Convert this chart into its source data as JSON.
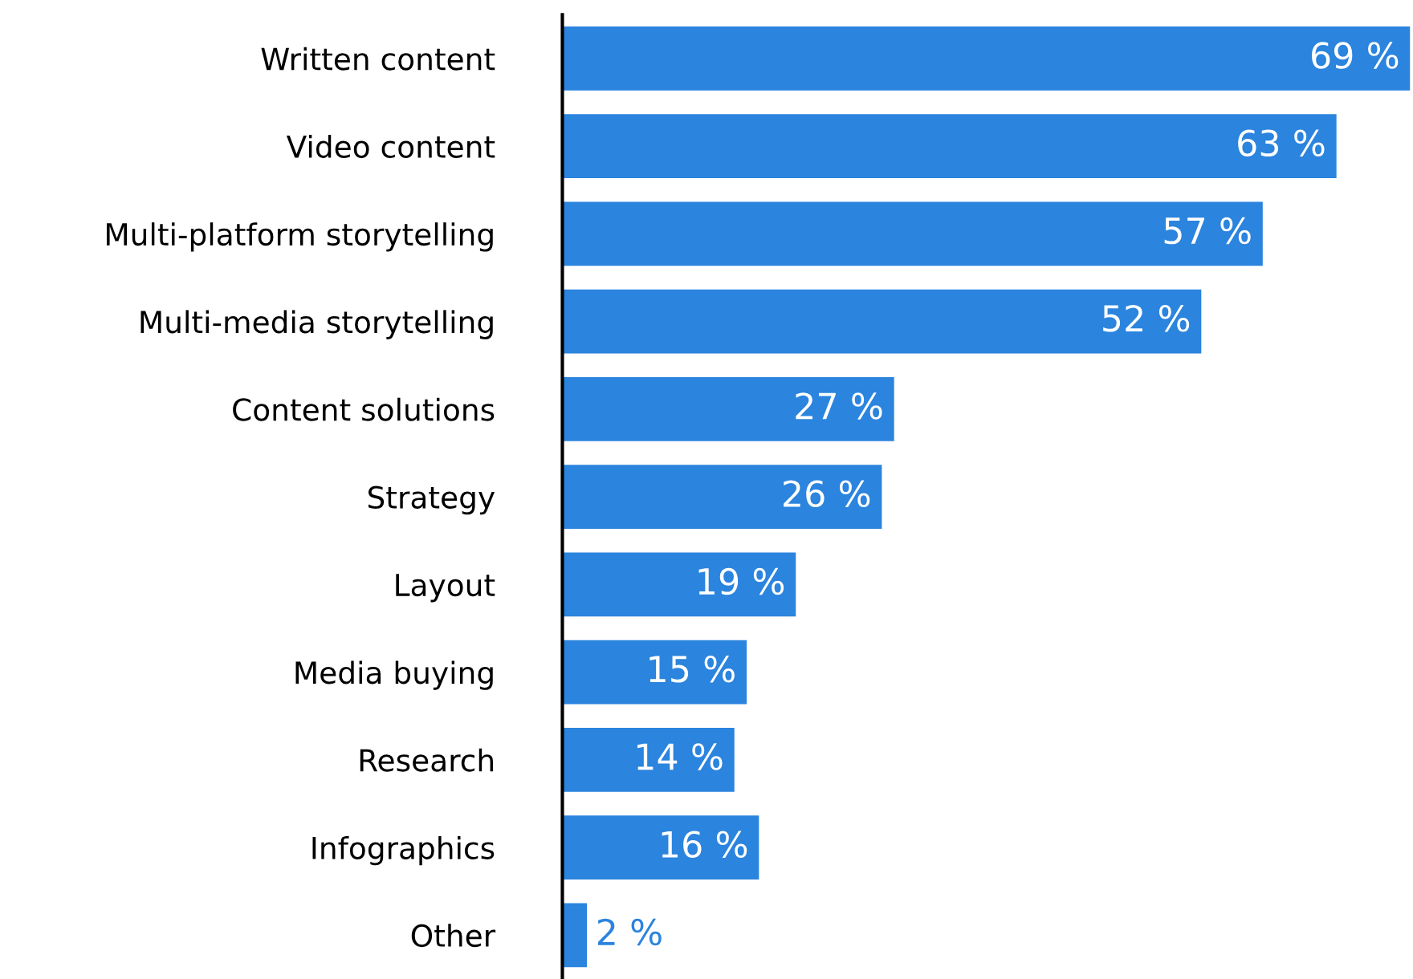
{
  "chart_data": {
    "type": "bar",
    "orientation": "horizontal",
    "categories": [
      "Written content",
      "Video content",
      "Multi-platform storytelling",
      "Multi-media storytelling",
      "Content solutions",
      "Strategy",
      "Layout",
      "Media buying",
      "Research",
      "Infographics",
      "Other"
    ],
    "values": [
      69,
      63,
      57,
      52,
      27,
      26,
      19,
      15,
      14,
      16,
      2
    ],
    "value_labels": [
      "69 %",
      "63 %",
      "57 %",
      "52 %",
      "27 %",
      "26 %",
      "19 %",
      "15 %",
      "14 %",
      "16 %",
      "2 %"
    ],
    "color": "#2b84de",
    "grid": false,
    "legend": false
  }
}
